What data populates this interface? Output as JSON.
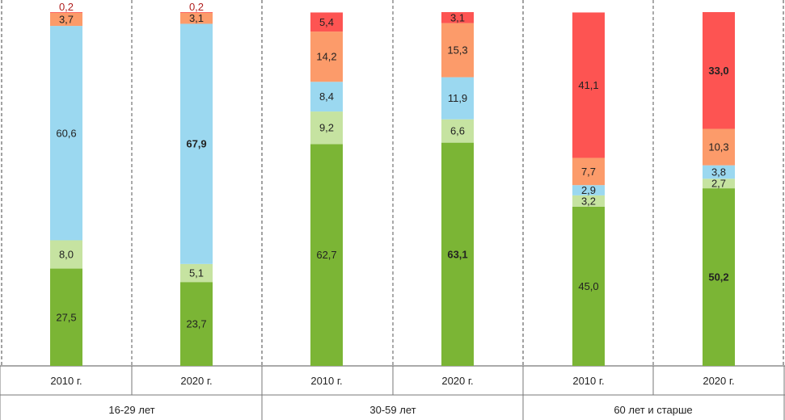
{
  "chart_data": {
    "type": "bar",
    "stacked": true,
    "value_unit": "percent",
    "groups": [
      "16-29 лет",
      "30-59 лет",
      "60 лет и старше"
    ],
    "categories": [
      "2010 г.",
      "2020 г.",
      "2010 г.",
      "2020 г.",
      "2010 г.",
      "2020 г."
    ],
    "category_group": [
      0,
      0,
      1,
      1,
      2,
      2
    ],
    "colors": [
      "#7bb535",
      "#c6e3a1",
      "#9bd8f0",
      "#fc9b6a",
      "#fd5452"
    ],
    "series": [
      {
        "name": "series-1",
        "values": [
          27.5,
          23.7,
          62.7,
          63.1,
          45.0,
          50.2
        ],
        "labels": [
          "27,5",
          "23,7",
          "62,7",
          "63,1",
          "45,0",
          "50,2"
        ]
      },
      {
        "name": "series-2",
        "values": [
          8.0,
          5.1,
          9.2,
          6.6,
          3.2,
          2.7
        ],
        "labels": [
          "8,0",
          "5,1",
          "9,2",
          "6,6",
          "3,2",
          "2,7"
        ]
      },
      {
        "name": "series-3",
        "values": [
          60.6,
          67.9,
          8.4,
          11.9,
          2.9,
          3.8
        ],
        "labels": [
          "60,6",
          "67,9",
          "8,4",
          "11,9",
          "2,9",
          "3,8"
        ]
      },
      {
        "name": "series-4",
        "values": [
          3.7,
          3.1,
          14.2,
          15.3,
          7.7,
          10.3
        ],
        "labels": [
          "3,7",
          "3,1",
          "14,2",
          "15,3",
          "7,7",
          "10,3"
        ]
      },
      {
        "name": "series-5",
        "values": [
          0.2,
          0.2,
          5.4,
          3.1,
          41.1,
          33.0
        ],
        "labels": [
          "0,2",
          "0,2",
          "5,4",
          "3,1",
          "41,1",
          "33,0"
        ]
      }
    ],
    "bold_labels": [
      {
        "series": 2,
        "category": 1
      },
      {
        "series": 0,
        "category": 3
      },
      {
        "series": 0,
        "category": 5
      },
      {
        "series": 4,
        "category": 5
      }
    ],
    "ylim": [
      0,
      100
    ],
    "title": "",
    "xlabel": "",
    "ylabel": "",
    "legend": "none"
  }
}
